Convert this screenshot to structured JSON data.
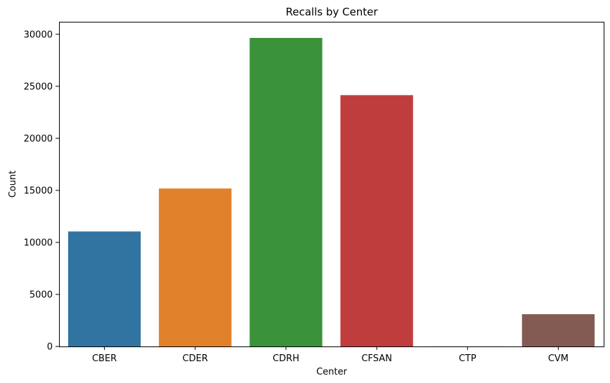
{
  "chart_data": {
    "type": "bar",
    "title": "Recalls by Center",
    "xlabel": "Center",
    "ylabel": "Count",
    "categories": [
      "CBER",
      "CDER",
      "CDRH",
      "CFSAN",
      "CTP",
      "CVM"
    ],
    "values": [
      11050,
      15180,
      29650,
      24150,
      5,
      3100
    ],
    "colors": [
      "#3274a1",
      "#e1812c",
      "#3a923a",
      "#c03d3e",
      "#9372b2",
      "#845b53"
    ],
    "ylim": [
      0,
      31200
    ],
    "yticks": [
      0,
      5000,
      10000,
      15000,
      20000,
      25000,
      30000
    ],
    "ytick_labels": [
      "0",
      "5000",
      "10000",
      "15000",
      "20000",
      "25000",
      "30000"
    ],
    "grid": false,
    "legend": "none"
  }
}
